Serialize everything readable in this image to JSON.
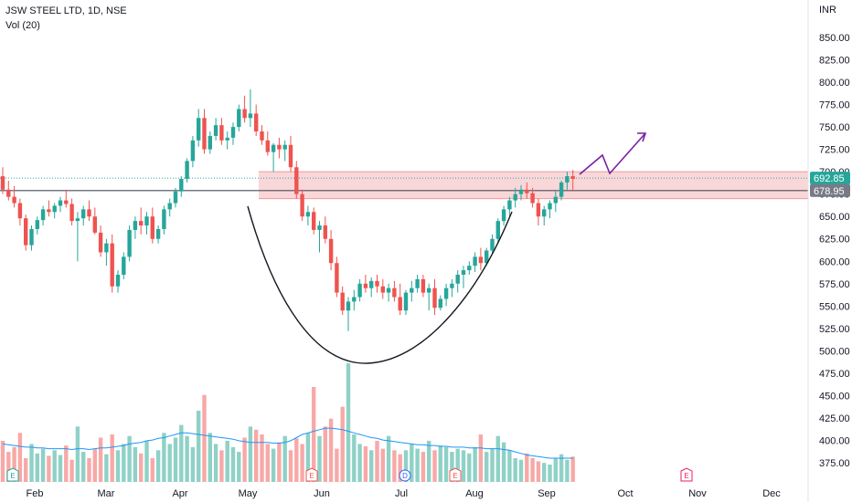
{
  "header": {
    "title": "JSW STEEL LTD, 1D, NSE",
    "volume_label": "Vol (20)",
    "currency": "INR"
  },
  "chart_data": {
    "type": "candlestick",
    "title": "JSW STEEL LTD, 1D, NSE",
    "y_axis": {
      "ticks": [
        850,
        825,
        800,
        775,
        750,
        725,
        700,
        675,
        650,
        625,
        600,
        575,
        550,
        525,
        500,
        475,
        450,
        425,
        400,
        375
      ],
      "tick_labels": [
        "850.00",
        "825.00",
        "800.00",
        "775.00",
        "750.00",
        "725.00",
        "700.00",
        "675.00",
        "650.00",
        "625.00",
        "600.00",
        "575.00",
        "550.00",
        "525.00",
        "500.00",
        "475.00",
        "450.00",
        "425.00",
        "400.00",
        "375.00"
      ],
      "range": [
        360,
        865
      ]
    },
    "x_axis": {
      "labels": [
        "Feb",
        "Mar",
        "Apr",
        "May",
        "Jun",
        "Jul",
        "Aug",
        "Sep",
        "Oct",
        "Nov",
        "Dec"
      ]
    },
    "price_tags": [
      {
        "value": 692.85,
        "label": "692.85",
        "color": "#26a69a"
      },
      {
        "value": 678.95,
        "label": "678.95",
        "color": "#787b86"
      }
    ],
    "resistance_zone": {
      "low": 670,
      "high": 700,
      "color": "#f7c9cc"
    },
    "horizontal_line": 678.95,
    "event_markers": [
      {
        "label": "E",
        "color": "#26a69a"
      },
      {
        "label": "E",
        "color": "#ef5350"
      },
      {
        "label": "D",
        "color": "#2962ff"
      },
      {
        "label": "E",
        "color": "#ef5350"
      },
      {
        "label": "E",
        "color": "#e91e63"
      }
    ],
    "colors": {
      "up": "#26a69a",
      "down": "#ef5350",
      "vol_up": "#8fd1c7",
      "vol_down": "#f7a9a7",
      "vol_ma": "#2196f3",
      "arrow": "#7b1fa2"
    },
    "ohlc": [
      [
        695,
        705,
        675,
        680
      ],
      [
        680,
        690,
        668,
        672
      ],
      [
        672,
        684,
        660,
        665
      ],
      [
        665,
        670,
        640,
        648
      ],
      [
        648,
        652,
        612,
        618
      ],
      [
        618,
        640,
        612,
        636
      ],
      [
        636,
        650,
        630,
        646
      ],
      [
        646,
        662,
        640,
        658
      ],
      [
        658,
        668,
        650,
        655
      ],
      [
        655,
        665,
        648,
        662
      ],
      [
        662,
        672,
        655,
        668
      ],
      [
        668,
        680,
        660,
        664
      ],
      [
        664,
        670,
        640,
        645
      ],
      [
        645,
        655,
        600,
        648
      ],
      [
        648,
        662,
        640,
        658
      ],
      [
        658,
        668,
        645,
        650
      ],
      [
        650,
        660,
        630,
        632
      ],
      [
        632,
        640,
        605,
        610
      ],
      [
        610,
        625,
        595,
        620
      ],
      [
        620,
        630,
        565,
        572
      ],
      [
        572,
        590,
        565,
        585
      ],
      [
        585,
        610,
        580,
        605
      ],
      [
        605,
        640,
        600,
        635
      ],
      [
        635,
        650,
        625,
        645
      ],
      [
        645,
        660,
        630,
        640
      ],
      [
        640,
        655,
        630,
        650
      ],
      [
        650,
        660,
        620,
        625
      ],
      [
        625,
        640,
        620,
        636
      ],
      [
        636,
        662,
        630,
        658
      ],
      [
        658,
        670,
        650,
        665
      ],
      [
        665,
        682,
        660,
        678
      ],
      [
        678,
        695,
        672,
        692
      ],
      [
        692,
        715,
        688,
        712
      ],
      [
        712,
        740,
        705,
        735
      ],
      [
        735,
        770,
        728,
        760
      ],
      [
        760,
        770,
        720,
        725
      ],
      [
        725,
        745,
        720,
        740
      ],
      [
        740,
        760,
        735,
        752
      ],
      [
        752,
        760,
        730,
        735
      ],
      [
        735,
        745,
        725,
        738
      ],
      [
        738,
        755,
        730,
        750
      ],
      [
        750,
        775,
        745,
        770
      ],
      [
        770,
        785,
        755,
        760
      ],
      [
        760,
        792,
        750,
        765
      ],
      [
        765,
        775,
        740,
        745
      ],
      [
        745,
        752,
        730,
        735
      ],
      [
        735,
        745,
        718,
        722
      ],
      [
        722,
        732,
        700,
        730
      ],
      [
        730,
        738,
        715,
        725
      ],
      [
        725,
        735,
        712,
        730
      ],
      [
        730,
        740,
        700,
        705
      ],
      [
        705,
        712,
        670,
        675
      ],
      [
        675,
        680,
        645,
        650
      ],
      [
        650,
        662,
        640,
        655
      ],
      [
        655,
        660,
        630,
        635
      ],
      [
        635,
        645,
        610,
        640
      ],
      [
        640,
        650,
        620,
        625
      ],
      [
        625,
        635,
        590,
        598
      ],
      [
        598,
        605,
        560,
        565
      ],
      [
        565,
        572,
        540,
        545
      ],
      [
        545,
        560,
        522,
        555
      ],
      [
        555,
        568,
        545,
        560
      ],
      [
        560,
        580,
        555,
        575
      ],
      [
        575,
        585,
        565,
        570
      ],
      [
        570,
        582,
        560,
        578
      ],
      [
        578,
        585,
        565,
        572
      ],
      [
        572,
        580,
        558,
        565
      ],
      [
        565,
        575,
        555,
        570
      ],
      [
        570,
        578,
        555,
        560
      ],
      [
        560,
        575,
        540,
        545
      ],
      [
        545,
        568,
        540,
        565
      ],
      [
        565,
        578,
        555,
        570
      ],
      [
        570,
        585,
        565,
        580
      ],
      [
        580,
        585,
        560,
        565
      ],
      [
        565,
        575,
        545,
        570
      ],
      [
        570,
        580,
        540,
        548
      ],
      [
        548,
        562,
        545,
        558
      ],
      [
        558,
        575,
        550,
        570
      ],
      [
        570,
        580,
        560,
        575
      ],
      [
        575,
        590,
        565,
        585
      ],
      [
        585,
        595,
        570,
        590
      ],
      [
        590,
        600,
        585,
        595
      ],
      [
        595,
        610,
        588,
        605
      ],
      [
        605,
        615,
        590,
        598
      ],
      [
        598,
        615,
        595,
        612
      ],
      [
        612,
        630,
        608,
        625
      ],
      [
        625,
        648,
        620,
        645
      ],
      [
        645,
        662,
        640,
        658
      ],
      [
        658,
        672,
        650,
        668
      ],
      [
        668,
        682,
        660,
        675
      ],
      [
        675,
        685,
        668,
        680
      ],
      [
        680,
        688,
        670,
        676
      ],
      [
        676,
        682,
        660,
        665
      ],
      [
        665,
        670,
        640,
        650
      ],
      [
        650,
        662,
        640,
        658
      ],
      [
        658,
        668,
        648,
        665
      ],
      [
        665,
        678,
        655,
        672
      ],
      [
        672,
        690,
        668,
        688
      ],
      [
        688,
        700,
        680,
        695
      ],
      [
        695,
        702,
        678,
        692
      ]
    ],
    "volume": [
      52,
      38,
      44,
      62,
      30,
      48,
      36,
      42,
      33,
      40,
      34,
      46,
      28,
      70,
      38,
      30,
      42,
      56,
      35,
      60,
      40,
      48,
      58,
      44,
      36,
      52,
      30,
      40,
      62,
      48,
      56,
      72,
      58,
      44,
      90,
      110,
      62,
      48,
      40,
      52,
      44,
      38,
      56,
      70,
      66,
      60,
      48,
      42,
      50,
      58,
      40,
      55,
      48,
      62,
      120,
      58,
      70,
      80,
      42,
      95,
      150,
      60,
      48,
      45,
      40,
      52,
      42,
      58,
      40,
      35,
      40,
      48,
      42,
      38,
      52,
      40,
      46,
      44,
      38,
      42,
      40,
      36,
      44,
      60,
      38,
      42,
      58,
      50,
      40,
      30,
      28,
      36,
      30,
      26,
      24,
      22,
      30,
      35,
      28,
      32
    ],
    "volume_ma": [
      48,
      47,
      46,
      45,
      44,
      44,
      43,
      43,
      42,
      42,
      42,
      42,
      41,
      42,
      42,
      41,
      42,
      43,
      43,
      44,
      45,
      46,
      48,
      49,
      50,
      52,
      53,
      55,
      56,
      58,
      60,
      62,
      62,
      61,
      60,
      59,
      58,
      57,
      56,
      55,
      54,
      52,
      51,
      50,
      50,
      50,
      50,
      49,
      49,
      50,
      52,
      56,
      60,
      62,
      64,
      66,
      68,
      68,
      67,
      66,
      64,
      62,
      60,
      58,
      56,
      55,
      53,
      52,
      51,
      50,
      49,
      48,
      47,
      47,
      46,
      46,
      45,
      45,
      44,
      44,
      44,
      43,
      43,
      43,
      42,
      42,
      42,
      41,
      40,
      38,
      36,
      34,
      33,
      32,
      31,
      30,
      30,
      30,
      30,
      30
    ]
  }
}
